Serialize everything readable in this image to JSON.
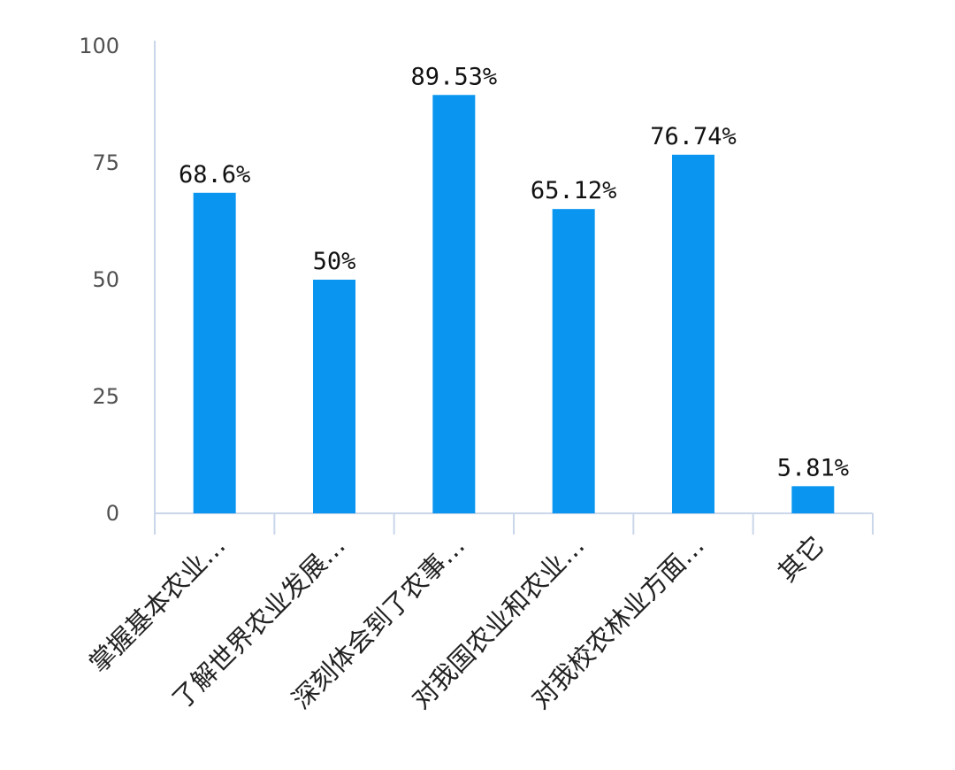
{
  "chart_data": {
    "type": "bar",
    "title": "",
    "xlabel": "",
    "ylabel": "",
    "categories": [
      "掌握基本农业…",
      "了解世界农业发展…",
      "深刻体会到了农事…",
      "对我国农业和农业…",
      "对我校农林业方面…",
      "其它"
    ],
    "values": [
      68.6,
      50,
      89.53,
      65.12,
      76.74,
      5.81
    ],
    "data_labels": [
      "68.6%",
      "50%",
      "89.53%",
      "65.12%",
      "76.74%",
      "5.81%"
    ],
    "yticks": [
      "0",
      "25",
      "50",
      "75",
      "100"
    ],
    "ylim": [
      0,
      100
    ],
    "grid": false,
    "legend": "none",
    "bar_color": "#0A96F0",
    "axis_color": "#CAD6EA"
  }
}
